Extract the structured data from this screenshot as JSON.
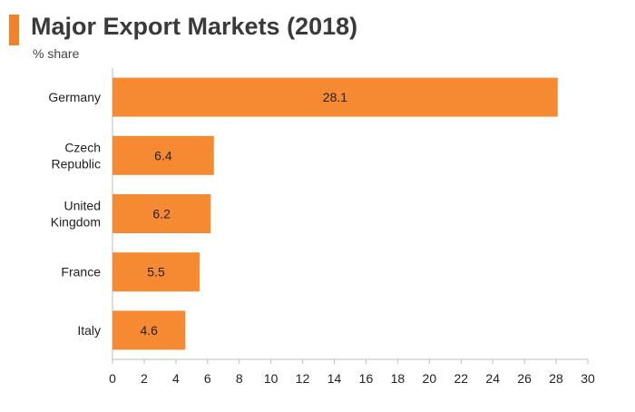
{
  "header": {
    "title": "Major Export Markets (2018)",
    "subtitle": "% share"
  },
  "colors": {
    "accent": "#F0832A",
    "bar": "#F58A32",
    "axis": "#bdbdbd"
  },
  "chart_data": {
    "type": "bar",
    "orientation": "horizontal",
    "categories": [
      [
        "Germany"
      ],
      [
        "Czech",
        "Republic"
      ],
      [
        "United",
        "Kingdom"
      ],
      [
        "France"
      ],
      [
        "Italy"
      ]
    ],
    "values": [
      28.1,
      6.4,
      6.2,
      5.5,
      4.6
    ],
    "data_labels": [
      "28.1",
      "6.4",
      "6.2",
      "5.5",
      "4.6"
    ],
    "xlim": [
      0,
      30
    ],
    "x_ticks": [
      "0",
      "2",
      "4",
      "6",
      "8",
      "10",
      "12",
      "14",
      "16",
      "18",
      "20",
      "22",
      "24",
      "26",
      "28",
      "30"
    ],
    "grid": false
  }
}
